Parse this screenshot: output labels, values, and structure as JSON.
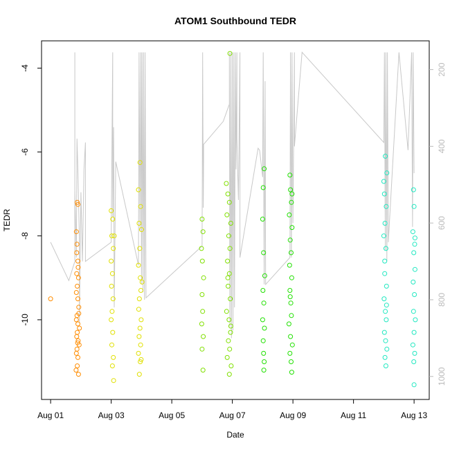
{
  "chart_data": {
    "type": "scatter",
    "title": "ATOM1 Southbound TEDR",
    "xlabel": "Date",
    "ylabel": "TEDR",
    "x_ticks": [
      "Aug 01",
      "Aug 03",
      "Aug 05",
      "Aug 07",
      "Aug 09",
      "Aug 11",
      "Aug 13"
    ],
    "x_tick_days": [
      1,
      3,
      5,
      7,
      9,
      11,
      13
    ],
    "xlim": [
      0.7,
      13.5
    ],
    "ylim": [
      -11.9,
      -3.35
    ],
    "y_ticks": [
      -10,
      -8,
      -6,
      -4
    ],
    "y2_ticks": [
      200,
      400,
      600,
      800,
      1000
    ],
    "y2lim": [
      1060,
      125
    ],
    "y2_color": "#bbbbbb",
    "line_color": "#c8c8c8",
    "grid": false,
    "legend": "none",
    "series": [
      {
        "color": "#ff8c00",
        "points": [
          [
            1.0,
            -9.5
          ],
          [
            1.88,
            -7.2
          ],
          [
            1.9,
            -7.25
          ],
          [
            1.85,
            -7.9
          ],
          [
            1.87,
            -8.2
          ],
          [
            1.9,
            -8.6
          ],
          [
            1.86,
            -8.9
          ],
          [
            1.92,
            -9.0
          ],
          [
            1.88,
            -9.2
          ],
          [
            1.85,
            -9.35
          ],
          [
            1.9,
            -9.5
          ],
          [
            1.93,
            -9.7
          ],
          [
            1.87,
            -9.9
          ],
          [
            1.85,
            -10.0
          ],
          [
            1.9,
            -10.1
          ],
          [
            1.95,
            -10.2
          ],
          [
            1.88,
            -10.3
          ],
          [
            1.86,
            -10.4
          ],
          [
            1.91,
            -10.5
          ],
          [
            1.94,
            -10.6
          ],
          [
            1.87,
            -10.7
          ],
          [
            1.85,
            -10.8
          ],
          [
            1.9,
            -10.9
          ],
          [
            1.88,
            -11.1
          ],
          [
            1.92,
            -11.3
          ],
          [
            1.86,
            -8.4
          ],
          [
            1.93,
            -9.85
          ],
          [
            1.89,
            -10.55
          ],
          [
            1.84,
            -11.2
          ],
          [
            1.91,
            -8.75
          ]
        ]
      },
      {
        "color": "#e0e000",
        "points": [
          [
            3.0,
            -7.4
          ],
          [
            3.05,
            -7.6
          ],
          [
            3.02,
            -8.0
          ],
          [
            3.07,
            -8.3
          ],
          [
            3.0,
            -8.6
          ],
          [
            3.04,
            -8.9
          ],
          [
            3.01,
            -9.2
          ],
          [
            3.06,
            -9.5
          ],
          [
            3.03,
            -9.8
          ],
          [
            3.0,
            -10.0
          ],
          [
            3.05,
            -10.3
          ],
          [
            3.02,
            -10.6
          ],
          [
            3.07,
            -10.9
          ],
          [
            3.04,
            -11.1
          ],
          [
            3.08,
            -11.45
          ],
          [
            3.1,
            -8.0
          ],
          [
            3.95,
            -6.25
          ],
          [
            3.9,
            -6.9
          ],
          [
            3.97,
            -7.3
          ],
          [
            3.92,
            -7.7
          ],
          [
            4.0,
            -7.85
          ],
          [
            3.94,
            -8.3
          ],
          [
            3.9,
            -8.7
          ],
          [
            3.96,
            -9.0
          ],
          [
            3.98,
            -9.3
          ],
          [
            3.93,
            -9.5
          ],
          [
            3.91,
            -9.75
          ],
          [
            3.99,
            -10.0
          ],
          [
            3.95,
            -10.2
          ],
          [
            3.92,
            -10.4
          ],
          [
            3.97,
            -10.6
          ],
          [
            3.9,
            -10.8
          ],
          [
            3.96,
            -11.0
          ],
          [
            3.93,
            -11.3
          ],
          [
            4.02,
            -9.1
          ],
          [
            3.99,
            -10.95
          ]
        ]
      },
      {
        "color": "#80e000",
        "points": [
          [
            6.0,
            -7.6
          ],
          [
            6.03,
            -7.9
          ],
          [
            5.98,
            -8.3
          ],
          [
            6.01,
            -8.6
          ],
          [
            6.05,
            -9.0
          ],
          [
            6.0,
            -9.4
          ],
          [
            6.02,
            -9.8
          ],
          [
            5.99,
            -10.1
          ],
          [
            6.04,
            -10.4
          ],
          [
            6.0,
            -10.7
          ],
          [
            6.03,
            -11.2
          ],
          [
            6.8,
            -6.75
          ],
          [
            6.85,
            -7.0
          ],
          [
            6.9,
            -7.2
          ],
          [
            6.82,
            -7.5
          ],
          [
            6.95,
            -7.7
          ],
          [
            6.88,
            -8.0
          ],
          [
            6.92,
            -8.3
          ],
          [
            6.84,
            -8.6
          ],
          [
            6.9,
            -8.9
          ],
          [
            6.86,
            -9.2
          ],
          [
            6.93,
            -9.5
          ],
          [
            6.81,
            -9.8
          ],
          [
            6.89,
            -10.0
          ],
          [
            6.94,
            -10.3
          ],
          [
            6.87,
            -10.5
          ],
          [
            6.91,
            -10.7
          ],
          [
            6.83,
            -10.9
          ],
          [
            6.96,
            -11.1
          ],
          [
            6.9,
            -11.3
          ],
          [
            6.92,
            -3.65
          ],
          [
            6.85,
            -9.0
          ],
          [
            6.95,
            -10.15
          ]
        ]
      },
      {
        "color": "#20e000",
        "points": [
          [
            8.02,
            -6.85
          ],
          [
            8.05,
            -6.4
          ],
          [
            8.0,
            -7.6
          ],
          [
            8.03,
            -8.4
          ],
          [
            8.07,
            -8.95
          ],
          [
            8.01,
            -9.3
          ],
          [
            8.04,
            -9.6
          ],
          [
            8.0,
            -10.0
          ],
          [
            8.06,
            -10.2
          ],
          [
            8.02,
            -10.5
          ],
          [
            8.03,
            -10.8
          ],
          [
            8.05,
            -11.0
          ],
          [
            8.04,
            -11.2
          ],
          [
            8.9,
            -6.55
          ],
          [
            8.92,
            -6.9
          ],
          [
            8.95,
            -7.2
          ],
          [
            8.88,
            -7.5
          ],
          [
            8.97,
            -7.8
          ],
          [
            8.91,
            -8.1
          ],
          [
            8.94,
            -8.4
          ],
          [
            8.89,
            -8.7
          ],
          [
            8.96,
            -9.0
          ],
          [
            8.9,
            -9.3
          ],
          [
            8.93,
            -9.6
          ],
          [
            8.95,
            -9.9
          ],
          [
            8.87,
            -10.1
          ],
          [
            8.92,
            -10.4
          ],
          [
            8.98,
            -10.6
          ],
          [
            8.9,
            -10.8
          ],
          [
            8.94,
            -11.0
          ],
          [
            8.96,
            -11.25
          ],
          [
            8.91,
            -9.45
          ],
          [
            8.97,
            -7.0
          ]
        ]
      },
      {
        "color": "#20e8c0",
        "points": [
          [
            12.0,
            -6.7
          ],
          [
            12.05,
            -6.1
          ],
          [
            12.1,
            -6.5
          ],
          [
            12.02,
            -7.0
          ],
          [
            12.08,
            -7.3
          ],
          [
            12.04,
            -7.7
          ],
          [
            12.0,
            -8.0
          ],
          [
            12.07,
            -8.3
          ],
          [
            12.03,
            -8.9
          ],
          [
            12.09,
            -9.2
          ],
          [
            12.01,
            -9.5
          ],
          [
            12.05,
            -9.8
          ],
          [
            12.08,
            -10.0
          ],
          [
            12.02,
            -10.3
          ],
          [
            12.06,
            -10.5
          ],
          [
            12.1,
            -10.7
          ],
          [
            12.04,
            -10.9
          ],
          [
            12.07,
            -11.1
          ],
          [
            12.03,
            -8.6
          ],
          [
            12.09,
            -9.65
          ],
          [
            12.98,
            -6.9
          ],
          [
            13.0,
            -7.3
          ],
          [
            12.96,
            -7.9
          ],
          [
            13.02,
            -8.2
          ],
          [
            12.99,
            -8.4
          ],
          [
            13.03,
            -8.8
          ],
          [
            12.97,
            -9.1
          ],
          [
            13.01,
            -9.4
          ],
          [
            12.98,
            -9.8
          ],
          [
            13.04,
            -10.0
          ],
          [
            13.0,
            -10.3
          ],
          [
            12.96,
            -10.6
          ],
          [
            13.02,
            -10.8
          ],
          [
            12.99,
            -11.0
          ],
          [
            13.0,
            -11.55
          ],
          [
            13.03,
            -8.05
          ]
        ]
      }
    ],
    "pressure_path": [
      [
        1.0,
        650
      ],
      [
        1.6,
        750
      ],
      [
        1.8,
        700
      ],
      [
        1.8,
        155
      ],
      [
        1.8,
        515
      ],
      [
        1.85,
        690
      ],
      [
        1.87,
        380
      ],
      [
        1.9,
        460
      ],
      [
        1.95,
        645
      ],
      [
        1.95,
        860
      ],
      [
        2.0,
        520
      ],
      [
        2.05,
        700
      ],
      [
        2.1,
        460
      ],
      [
        2.15,
        390
      ],
      [
        2.15,
        700
      ],
      [
        3.0,
        650
      ],
      [
        3.05,
        155
      ],
      [
        3.05,
        585
      ],
      [
        3.08,
        350
      ],
      [
        3.1,
        820
      ],
      [
        3.15,
        440
      ],
      [
        3.9,
        710
      ],
      [
        3.92,
        155
      ],
      [
        3.95,
        620
      ],
      [
        3.98,
        155
      ],
      [
        4.0,
        760
      ],
      [
        4.02,
        155
      ],
      [
        4.05,
        780
      ],
      [
        4.07,
        155
      ],
      [
        4.1,
        800
      ],
      [
        4.12,
        155
      ],
      [
        4.15,
        795
      ],
      [
        6.0,
        660
      ],
      [
        6.02,
        155
      ],
      [
        6.04,
        560
      ],
      [
        6.05,
        430
      ],
      [
        6.05,
        395
      ],
      [
        6.7,
        335
      ],
      [
        6.9,
        290
      ],
      [
        6.9,
        155
      ],
      [
        6.92,
        870
      ],
      [
        6.95,
        155
      ],
      [
        6.97,
        900
      ],
      [
        7.0,
        155
      ],
      [
        7.02,
        880
      ],
      [
        7.05,
        155
      ],
      [
        7.07,
        820
      ],
      [
        7.1,
        155
      ],
      [
        7.12,
        460
      ],
      [
        7.15,
        155
      ],
      [
        7.15,
        380
      ],
      [
        7.2,
        540
      ],
      [
        7.25,
        155
      ],
      [
        7.25,
        690
      ],
      [
        7.85,
        405
      ],
      [
        7.9,
        410
      ],
      [
        8.0,
        480
      ],
      [
        8.02,
        155
      ],
      [
        8.05,
        760
      ],
      [
        8.08,
        230
      ],
      [
        8.1,
        760
      ],
      [
        8.9,
        690
      ],
      [
        8.92,
        155
      ],
      [
        8.95,
        690
      ],
      [
        8.97,
        155
      ],
      [
        9.0,
        600
      ],
      [
        9.05,
        155
      ],
      [
        9.05,
        400
      ],
      [
        9.3,
        155
      ],
      [
        12.0,
        390
      ],
      [
        12.02,
        155
      ],
      [
        12.05,
        670
      ],
      [
        12.07,
        155
      ],
      [
        12.1,
        700
      ],
      [
        12.12,
        155
      ],
      [
        12.15,
        650
      ],
      [
        12.5,
        155
      ],
      [
        12.8,
        410
      ],
      [
        12.92,
        155
      ],
      [
        12.95,
        610
      ],
      [
        12.97,
        155
      ],
      [
        13.0,
        470
      ]
    ]
  }
}
